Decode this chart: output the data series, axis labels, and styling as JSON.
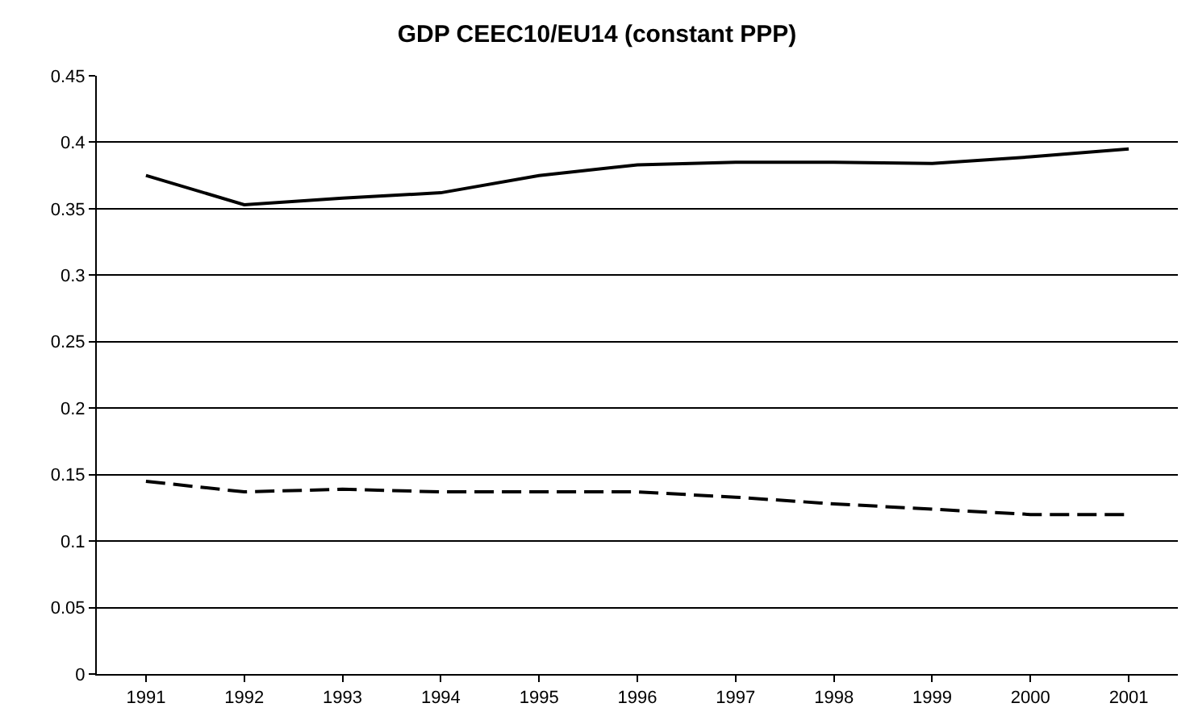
{
  "chart_data": {
    "type": "line",
    "title": "GDP CEEC10/EU14 (constant PPP)",
    "categories": [
      "1991",
      "1992",
      "1993",
      "1994",
      "1995",
      "1996",
      "1997",
      "1998",
      "1999",
      "2000",
      "2001"
    ],
    "series": [
      {
        "color": "#000000",
        "line_style": "solid",
        "values": [
          0.375,
          0.353,
          0.358,
          0.362,
          0.375,
          0.383,
          0.385,
          0.385,
          0.384,
          0.389,
          0.395
        ]
      },
      {
        "color": "#000000",
        "line_style": "dashed",
        "values": [
          0.145,
          0.137,
          0.139,
          0.137,
          0.137,
          0.137,
          0.133,
          0.128,
          0.124,
          0.12,
          0.12
        ]
      }
    ],
    "ylim": [
      0,
      0.45
    ],
    "yticks": [
      0,
      0.05,
      0.1,
      0.15,
      0.2,
      0.25,
      0.3,
      0.35,
      0.4,
      0.45
    ],
    "grid": "y",
    "marker": "none"
  }
}
